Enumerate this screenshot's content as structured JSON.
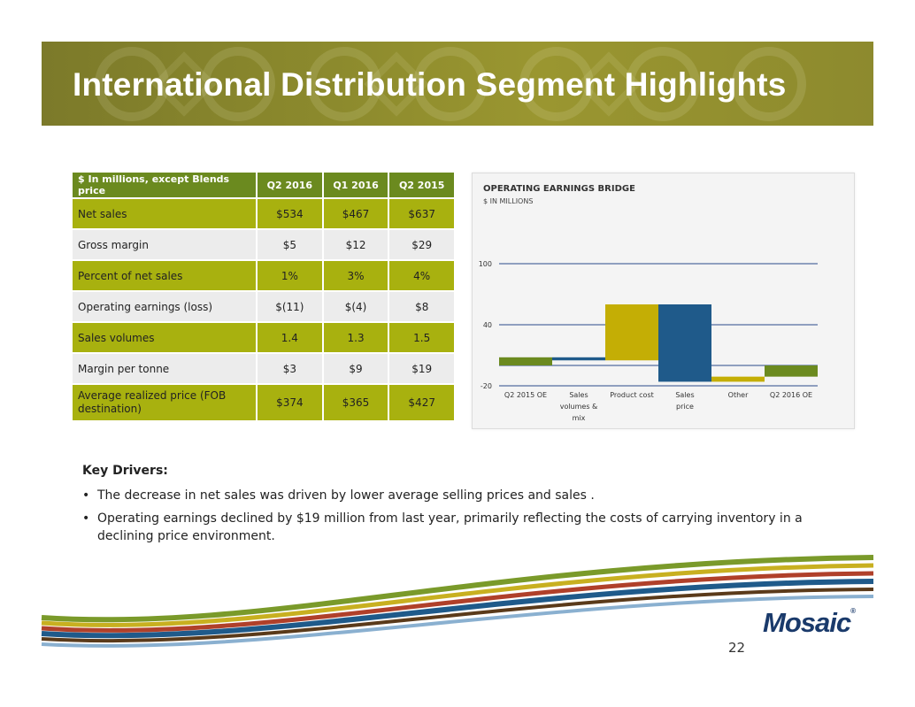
{
  "banner": {
    "title": "International Distribution Segment Highlights"
  },
  "table": {
    "headers": [
      "$ In millions, except Blends price",
      "Q2 2016",
      "Q1 2016",
      "Q2 2015"
    ],
    "rows": [
      [
        "Net sales",
        "$534",
        "$467",
        "$637"
      ],
      [
        "Gross margin",
        "$5",
        "$12",
        "$29"
      ],
      [
        "Percent of net sales",
        "1%",
        "3%",
        "4%"
      ],
      [
        "Operating earnings (loss)",
        "$(11)",
        "$(4)",
        "$8"
      ],
      [
        "Sales volumes",
        "1.4",
        "1.3",
        "1.5"
      ],
      [
        "Margin per tonne",
        "$3",
        "$9",
        "$19"
      ],
      [
        "Average realized price (FOB destination)",
        "$374",
        "$365",
        "$427"
      ]
    ]
  },
  "chart_data": {
    "type": "bar",
    "subtype": "waterfall",
    "title": "OPERATING EARNINGS BRIDGE",
    "subtitle": "$ IN MILLIONS",
    "categories": [
      "Q2 2015 OE",
      "Sales volumes & mix",
      "Product cost",
      "Sales price",
      "Other",
      "Q2 2016 OE"
    ],
    "segments": [
      {
        "category": "Q2 2015 OE",
        "from": 0,
        "to": 8,
        "color": "#6b8a1f"
      },
      {
        "category": "Sales volumes & mix",
        "from": 8,
        "to": 5,
        "color": "#1f5a8a"
      },
      {
        "category": "Product cost",
        "from": 5,
        "to": 60,
        "color": "#c4ae05"
      },
      {
        "category": "Sales price",
        "from": 60,
        "to": -16,
        "color": "#1f5a8a"
      },
      {
        "category": "Other",
        "from": -16,
        "to": -11,
        "color": "#c4ae05"
      },
      {
        "category": "Q2 2016 OE",
        "from": 0,
        "to": -11,
        "color": "#6b8a1f"
      }
    ],
    "y_ticks": [
      -20,
      40,
      100
    ],
    "ylim": [
      -20,
      100
    ],
    "grid": true,
    "legend": "none"
  },
  "drivers": {
    "heading": "Key  Drivers:",
    "items": [
      "The decrease in net sales was driven by lower average selling prices and sales .",
      "Operating earnings declined by $19 million from last year, primarily reflecting the costs of carrying inventory in a declining price environment."
    ]
  },
  "footer": {
    "logo": "Mosaic",
    "page_number": "22"
  }
}
